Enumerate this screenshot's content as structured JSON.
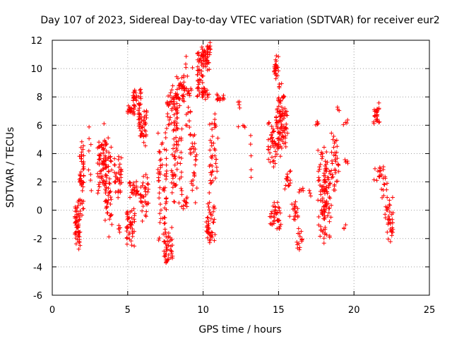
{
  "chart_data": {
    "type": "scatter",
    "title": "Day 107 of 2023, Sidereal Day-to-day VTEC variation (SDTVAR) for receiver eur2",
    "xlabel": "GPS time / hours",
    "ylabel": "SDTVAR / TECUs",
    "xlim": [
      0,
      25
    ],
    "ylim": [
      -6,
      12
    ],
    "xticks": [
      0,
      5,
      10,
      15,
      20,
      25
    ],
    "yticks": [
      -6,
      -4,
      -2,
      0,
      2,
      4,
      6,
      8,
      10,
      12
    ],
    "grid": true,
    "marker": "+",
    "color": "#ff0000",
    "clusters": [
      {
        "x0": 1.5,
        "x1": 1.85,
        "ymin": -2.9,
        "ymax": 0.9,
        "n": 60
      },
      {
        "x0": 1.8,
        "x1": 2.1,
        "ymin": -0.5,
        "ymax": 5.5,
        "n": 45
      },
      {
        "x0": 2.4,
        "x1": 2.6,
        "ymin": 0.8,
        "ymax": 5.9,
        "n": 8
      },
      {
        "x0": 3.0,
        "x1": 3.6,
        "ymin": 0.5,
        "ymax": 6.2,
        "n": 70
      },
      {
        "x0": 3.5,
        "x1": 3.95,
        "ymin": -2.2,
        "ymax": 5.4,
        "n": 55
      },
      {
        "x0": 4.1,
        "x1": 4.6,
        "ymin": 0.8,
        "ymax": 4.0,
        "n": 35
      },
      {
        "x0": 4.4,
        "x1": 4.55,
        "ymin": -1.6,
        "ymax": -1.0,
        "n": 5
      },
      {
        "x0": 4.9,
        "x1": 5.5,
        "ymin": -2.7,
        "ymax": 0.4,
        "n": 45
      },
      {
        "x0": 5.0,
        "x1": 5.5,
        "ymin": 6.7,
        "ymax": 7.4,
        "n": 20
      },
      {
        "x0": 5.3,
        "x1": 5.9,
        "ymin": 7.0,
        "ymax": 8.8,
        "n": 35
      },
      {
        "x0": 5.1,
        "x1": 5.7,
        "ymin": 0.8,
        "ymax": 2.2,
        "n": 25
      },
      {
        "x0": 5.7,
        "x1": 6.3,
        "ymin": 4.5,
        "ymax": 7.5,
        "n": 45
      },
      {
        "x0": 5.8,
        "x1": 6.4,
        "ymin": -0.8,
        "ymax": 2.8,
        "n": 35
      },
      {
        "x0": 7.0,
        "x1": 7.6,
        "ymin": -2.8,
        "ymax": 6.8,
        "n": 60
      },
      {
        "x0": 7.4,
        "x1": 8.0,
        "ymin": -4.4,
        "ymax": -1.0,
        "n": 45
      },
      {
        "x0": 7.6,
        "x1": 8.3,
        "ymin": 5.5,
        "ymax": 9.0,
        "n": 60
      },
      {
        "x0": 7.9,
        "x1": 8.6,
        "ymin": 0.0,
        "ymax": 6.5,
        "n": 55
      },
      {
        "x0": 8.2,
        "x1": 8.8,
        "ymin": 7.0,
        "ymax": 9.8,
        "n": 40
      },
      {
        "x0": 8.6,
        "x1": 9.0,
        "ymin": 0.0,
        "ymax": 1.0,
        "n": 10
      },
      {
        "x0": 8.8,
        "x1": 9.3,
        "ymin": 3.6,
        "ymax": 11.2,
        "n": 30
      },
      {
        "x0": 9.2,
        "x1": 9.6,
        "ymin": 0.4,
        "ymax": 6.5,
        "n": 25
      },
      {
        "x0": 9.6,
        "x1": 10.0,
        "ymin": 7.8,
        "ymax": 11.8,
        "n": 40
      },
      {
        "x0": 9.9,
        "x1": 10.5,
        "ymin": 9.8,
        "ymax": 11.9,
        "n": 50
      },
      {
        "x0": 9.9,
        "x1": 10.4,
        "ymin": 7.8,
        "ymax": 8.8,
        "n": 20
      },
      {
        "x0": 10.2,
        "x1": 10.8,
        "ymin": -2.8,
        "ymax": 0.8,
        "n": 45
      },
      {
        "x0": 10.4,
        "x1": 11.0,
        "ymin": 1.0,
        "ymax": 7.0,
        "n": 40
      },
      {
        "x0": 10.9,
        "x1": 11.4,
        "ymin": 7.6,
        "ymax": 8.2,
        "n": 12
      },
      {
        "x0": 12.3,
        "x1": 12.5,
        "ymin": 7.2,
        "ymax": 7.8,
        "n": 4
      },
      {
        "x0": 12.2,
        "x1": 12.8,
        "ymin": 5.8,
        "ymax": 6.0,
        "n": 4
      },
      {
        "x0": 13.1,
        "x1": 13.3,
        "ymin": 1.7,
        "ymax": 6.2,
        "n": 5
      },
      {
        "x0": 14.3,
        "x1": 14.9,
        "ymin": 3.0,
        "ymax": 6.5,
        "n": 40
      },
      {
        "x0": 14.7,
        "x1": 15.0,
        "ymin": 9.0,
        "ymax": 11.0,
        "n": 25
      },
      {
        "x0": 14.8,
        "x1": 15.4,
        "ymin": 3.5,
        "ymax": 9.5,
        "n": 60
      },
      {
        "x0": 15.0,
        "x1": 15.6,
        "ymin": 4.0,
        "ymax": 7.8,
        "n": 45
      },
      {
        "x0": 14.4,
        "x1": 15.2,
        "ymin": -1.6,
        "ymax": 0.7,
        "n": 40
      },
      {
        "x0": 15.4,
        "x1": 15.8,
        "ymin": 1.4,
        "ymax": 2.8,
        "n": 15
      },
      {
        "x0": 15.7,
        "x1": 16.3,
        "ymin": -0.8,
        "ymax": 0.6,
        "n": 18
      },
      {
        "x0": 16.2,
        "x1": 16.6,
        "ymin": -3.0,
        "ymax": -1.2,
        "n": 15
      },
      {
        "x0": 16.3,
        "x1": 16.7,
        "ymin": 1.2,
        "ymax": 1.6,
        "n": 5
      },
      {
        "x0": 17.0,
        "x1": 17.2,
        "ymin": 1.0,
        "ymax": 1.4,
        "n": 3
      },
      {
        "x0": 17.4,
        "x1": 17.7,
        "ymin": 6.0,
        "ymax": 6.3,
        "n": 5
      },
      {
        "x0": 17.6,
        "x1": 18.2,
        "ymin": -2.6,
        "ymax": 5.0,
        "n": 70
      },
      {
        "x0": 17.9,
        "x1": 18.5,
        "ymin": -2.4,
        "ymax": 4.0,
        "n": 50
      },
      {
        "x0": 18.5,
        "x1": 19.0,
        "ymin": 0.8,
        "ymax": 6.0,
        "n": 35
      },
      {
        "x0": 18.9,
        "x1": 19.1,
        "ymin": 7.0,
        "ymax": 7.3,
        "n": 3
      },
      {
        "x0": 19.3,
        "x1": 19.6,
        "ymin": 6.0,
        "ymax": 6.4,
        "n": 4
      },
      {
        "x0": 19.4,
        "x1": 19.6,
        "ymin": 3.3,
        "ymax": 3.6,
        "n": 4
      },
      {
        "x0": 19.3,
        "x1": 19.5,
        "ymin": -1.4,
        "ymax": -1.0,
        "n": 3
      },
      {
        "x0": 21.3,
        "x1": 21.7,
        "ymin": 5.8,
        "ymax": 7.7,
        "n": 25
      },
      {
        "x0": 21.3,
        "x1": 21.8,
        "ymin": 1.8,
        "ymax": 3.4,
        "n": 12
      },
      {
        "x0": 21.8,
        "x1": 22.2,
        "ymin": 0.6,
        "ymax": 3.4,
        "n": 15
      },
      {
        "x0": 22.0,
        "x1": 22.6,
        "ymin": -2.4,
        "ymax": 1.0,
        "n": 35
      }
    ]
  }
}
